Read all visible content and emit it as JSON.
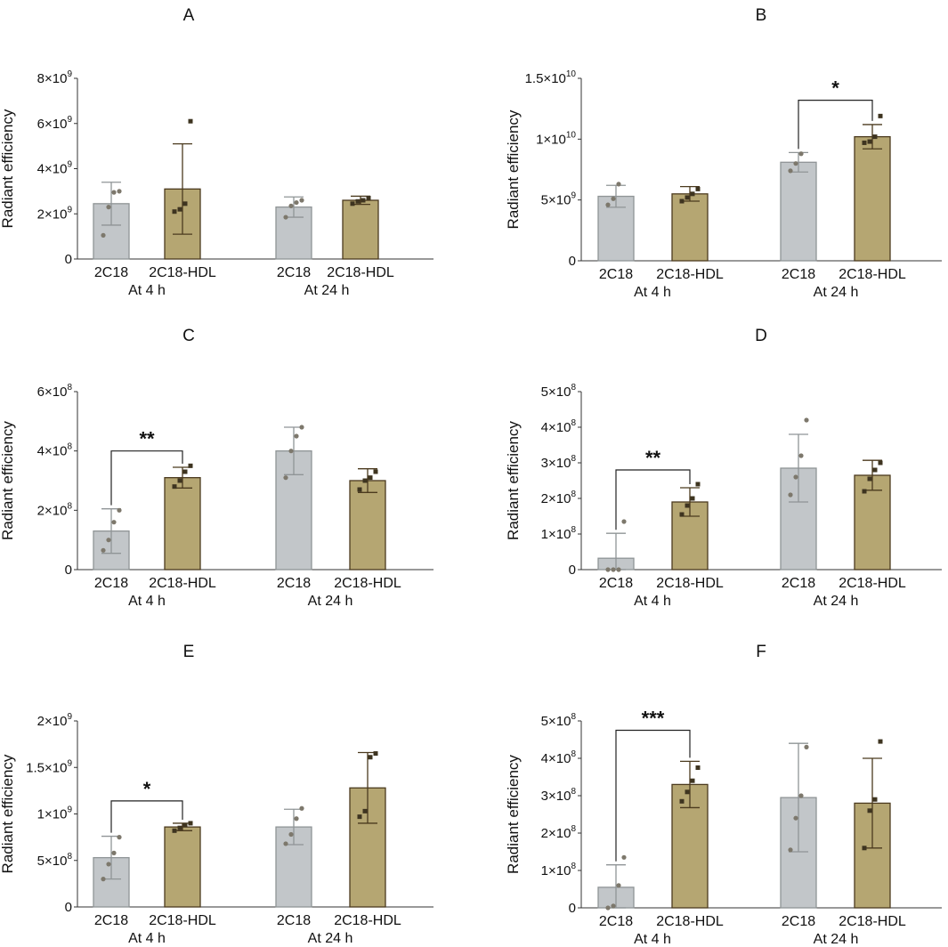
{
  "colors": {
    "bar_2c18_fill": "#c2c6c9",
    "bar_2c18_edge": "#8f9496",
    "bar_hdl_fill": "#b5a672",
    "bar_hdl_edge": "#4b3a1e",
    "point_2c18": "#7d786c",
    "point_hdl": "#3e3420",
    "axis": "#333333",
    "text": "#111111"
  },
  "common": {
    "ylabel": "Radiant efficiency",
    "groups": [
      "At 4 h",
      "At 24 h"
    ],
    "categories": [
      "2C18",
      "2C18-HDL"
    ]
  },
  "chart_data": [
    {
      "type": "bar",
      "title": "A",
      "ylabel": "Radiant efficiency",
      "categories": [
        "2C18",
        "2C18-HDL",
        "2C18",
        "2C18-HDL"
      ],
      "groups": [
        "At 4 h",
        "At 24 h"
      ],
      "unit_exp": 9,
      "ylim": [
        0,
        8
      ],
      "yticks": [
        0,
        2,
        4,
        6,
        8
      ],
      "ytick_labels": [
        {
          "m": "0",
          "e": ""
        },
        {
          "m": "2×10",
          "e": "9"
        },
        {
          "m": "4×10",
          "e": "9"
        },
        {
          "m": "6×10",
          "e": "9"
        },
        {
          "m": "8×10",
          "e": "9"
        }
      ],
      "series": [
        {
          "name": "2C18 At 4 h",
          "value": 2.45,
          "err": 0.95,
          "points": [
            1.05,
            2.3,
            2.95,
            3.0
          ]
        },
        {
          "name": "2C18-HDL At 4 h",
          "value": 3.1,
          "err": 2.0,
          "points": [
            2.1,
            2.2,
            2.45,
            6.1
          ]
        },
        {
          "name": "2C18 At 24 h",
          "value": 2.3,
          "err": 0.45,
          "points": [
            1.85,
            2.35,
            2.5,
            2.6
          ]
        },
        {
          "name": "2C18-HDL At 24 h",
          "value": 2.6,
          "err": 0.18,
          "points": [
            2.45,
            2.55,
            2.6,
            2.7
          ]
        }
      ],
      "significance": []
    },
    {
      "type": "bar",
      "title": "B",
      "ylabel": "Radiant efficiency",
      "categories": [
        "2C18",
        "2C18-HDL",
        "2C18",
        "2C18-HDL"
      ],
      "groups": [
        "At 4 h",
        "At 24 h"
      ],
      "unit_exp": 9,
      "ylim": [
        0,
        15
      ],
      "yticks": [
        0,
        5,
        10,
        15
      ],
      "ytick_labels": [
        {
          "m": "0",
          "e": ""
        },
        {
          "m": "5×10",
          "e": "9"
        },
        {
          "m": "1×10",
          "e": "10"
        },
        {
          "m": "1.5×10",
          "e": "10"
        }
      ],
      "series": [
        {
          "name": "2C18 At 4 h",
          "value": 5.3,
          "err": 0.9,
          "points": [
            4.6,
            5.1,
            6.3
          ]
        },
        {
          "name": "2C18-HDL At 4 h",
          "value": 5.5,
          "err": 0.6,
          "points": [
            4.9,
            5.2,
            5.5,
            5.9
          ]
        },
        {
          "name": "2C18 At 24 h",
          "value": 8.1,
          "err": 0.8,
          "points": [
            7.4,
            8.0,
            8.8
          ]
        },
        {
          "name": "2C18-HDL At 24 h",
          "value": 10.2,
          "err": 1.0,
          "points": [
            9.7,
            9.8,
            10.2,
            11.9
          ]
        }
      ],
      "significance": [
        {
          "from": 2,
          "to": 3,
          "label": "*",
          "y": 13.2
        }
      ]
    },
    {
      "type": "bar",
      "title": "C",
      "ylabel": "Radiant efficiency",
      "categories": [
        "2C18",
        "2C18-HDL",
        "2C18",
        "2C18-HDL"
      ],
      "groups": [
        "At 4 h",
        "At 24 h"
      ],
      "unit_exp": 8,
      "ylim": [
        0,
        6
      ],
      "yticks": [
        0,
        2,
        4,
        6
      ],
      "ytick_labels": [
        {
          "m": "0",
          "e": ""
        },
        {
          "m": "2×10",
          "e": "8"
        },
        {
          "m": "4×10",
          "e": "8"
        },
        {
          "m": "6×10",
          "e": "8"
        }
      ],
      "series": [
        {
          "name": "2C18 At 4 h",
          "value": 1.3,
          "err": 0.75,
          "points": [
            0.65,
            1.0,
            1.6,
            2.0
          ]
        },
        {
          "name": "2C18-HDL At 4 h",
          "value": 3.1,
          "err": 0.35,
          "points": [
            2.8,
            3.0,
            3.3,
            3.5
          ]
        },
        {
          "name": "2C18 At 24 h",
          "value": 4.0,
          "err": 0.8,
          "points": [
            3.1,
            4.0,
            4.5,
            4.8
          ]
        },
        {
          "name": "2C18-HDL At 24 h",
          "value": 3.0,
          "err": 0.4,
          "points": [
            2.7,
            3.0,
            3.1,
            3.3
          ]
        }
      ],
      "significance": [
        {
          "from": 0,
          "to": 1,
          "label": "**",
          "y": 4.0
        }
      ]
    },
    {
      "type": "bar",
      "title": "D",
      "ylabel": "Radiant efficiency",
      "categories": [
        "2C18",
        "2C18-HDL",
        "2C18",
        "2C18-HDL"
      ],
      "groups": [
        "At 4 h",
        "At 24 h"
      ],
      "unit_exp": 8,
      "ylim": [
        0,
        5
      ],
      "yticks": [
        0,
        1,
        2,
        3,
        4,
        5
      ],
      "ytick_labels": [
        {
          "m": "0",
          "e": ""
        },
        {
          "m": "1×10",
          "e": "8"
        },
        {
          "m": "2×10",
          "e": "8"
        },
        {
          "m": "3×10",
          "e": "8"
        },
        {
          "m": "4×10",
          "e": "8"
        },
        {
          "m": "5×10",
          "e": "8"
        }
      ],
      "series": [
        {
          "name": "2C18 At 4 h",
          "value": 0.32,
          "err": 0.7,
          "points": [
            0.0,
            0.0,
            0.0,
            1.35
          ]
        },
        {
          "name": "2C18-HDL At 4 h",
          "value": 1.9,
          "err": 0.4,
          "points": [
            1.55,
            1.8,
            2.0,
            2.4
          ]
        },
        {
          "name": "2C18 At 24 h",
          "value": 2.85,
          "err": 0.95,
          "points": [
            2.1,
            2.6,
            3.2,
            4.2
          ]
        },
        {
          "name": "2C18-HDL At 24 h",
          "value": 2.65,
          "err": 0.42,
          "points": [
            2.2,
            2.55,
            2.8,
            3.0
          ]
        }
      ],
      "significance": [
        {
          "from": 0,
          "to": 1,
          "label": "**",
          "y": 2.8
        }
      ]
    },
    {
      "type": "bar",
      "title": "E",
      "ylabel": "Radiant efficiency",
      "categories": [
        "2C18",
        "2C18-HDL",
        "2C18",
        "2C18-HDL"
      ],
      "groups": [
        "At 4 h",
        "At 24 h"
      ],
      "unit_exp": 8,
      "ylim": [
        0,
        20
      ],
      "yticks": [
        0,
        5,
        10,
        15,
        20
      ],
      "ytick_labels": [
        {
          "m": "0",
          "e": ""
        },
        {
          "m": "5×10",
          "e": "8"
        },
        {
          "m": "1×10",
          "e": "9"
        },
        {
          "m": "1.5×10",
          "e": "9"
        },
        {
          "m": "2×10",
          "e": "9"
        }
      ],
      "series": [
        {
          "name": "2C18 At 4 h",
          "value": 5.3,
          "err": 2.3,
          "points": [
            3.0,
            4.6,
            5.8,
            7.5
          ]
        },
        {
          "name": "2C18-HDL At 4 h",
          "value": 8.6,
          "err": 0.4,
          "points": [
            8.2,
            8.5,
            8.8,
            9.0
          ]
        },
        {
          "name": "2C18 At 24 h",
          "value": 8.6,
          "err": 1.9,
          "points": [
            6.8,
            7.8,
            9.5,
            10.6
          ]
        },
        {
          "name": "2C18-HDL At 24 h",
          "value": 12.8,
          "err": 3.8,
          "points": [
            9.7,
            10.3,
            16.1,
            16.5
          ]
        }
      ],
      "significance": [
        {
          "from": 0,
          "to": 1,
          "label": "*",
          "y": 11.4
        }
      ]
    },
    {
      "type": "bar",
      "title": "F",
      "ylabel": "Radiant efficiency",
      "categories": [
        "2C18",
        "2C18-HDL",
        "2C18",
        "2C18-HDL"
      ],
      "groups": [
        "At 4 h",
        "At 24 h"
      ],
      "unit_exp": 8,
      "ylim": [
        0,
        5
      ],
      "yticks": [
        0,
        1,
        2,
        3,
        4,
        5
      ],
      "ytick_labels": [
        {
          "m": "0",
          "e": ""
        },
        {
          "m": "1×10",
          "e": "8"
        },
        {
          "m": "2×10",
          "e": "8"
        },
        {
          "m": "3×10",
          "e": "8"
        },
        {
          "m": "4×10",
          "e": "8"
        },
        {
          "m": "5×10",
          "e": "8"
        }
      ],
      "series": [
        {
          "name": "2C18 At 4 h",
          "value": 0.55,
          "err": 0.6,
          "points": [
            0.0,
            0.05,
            0.6,
            1.35
          ]
        },
        {
          "name": "2C18-HDL At 4 h",
          "value": 3.3,
          "err": 0.62,
          "points": [
            2.85,
            3.1,
            3.4,
            3.75
          ]
        },
        {
          "name": "2C18 At 24 h",
          "value": 2.95,
          "err": 1.45,
          "points": [
            1.55,
            2.4,
            3.0,
            4.3
          ]
        },
        {
          "name": "2C18-HDL At 24 h",
          "value": 2.8,
          "err": 1.2,
          "points": [
            1.6,
            2.6,
            2.9,
            4.45
          ]
        }
      ],
      "significance": [
        {
          "from": 0,
          "to": 1,
          "label": "***",
          "y": 4.75
        }
      ]
    }
  ]
}
